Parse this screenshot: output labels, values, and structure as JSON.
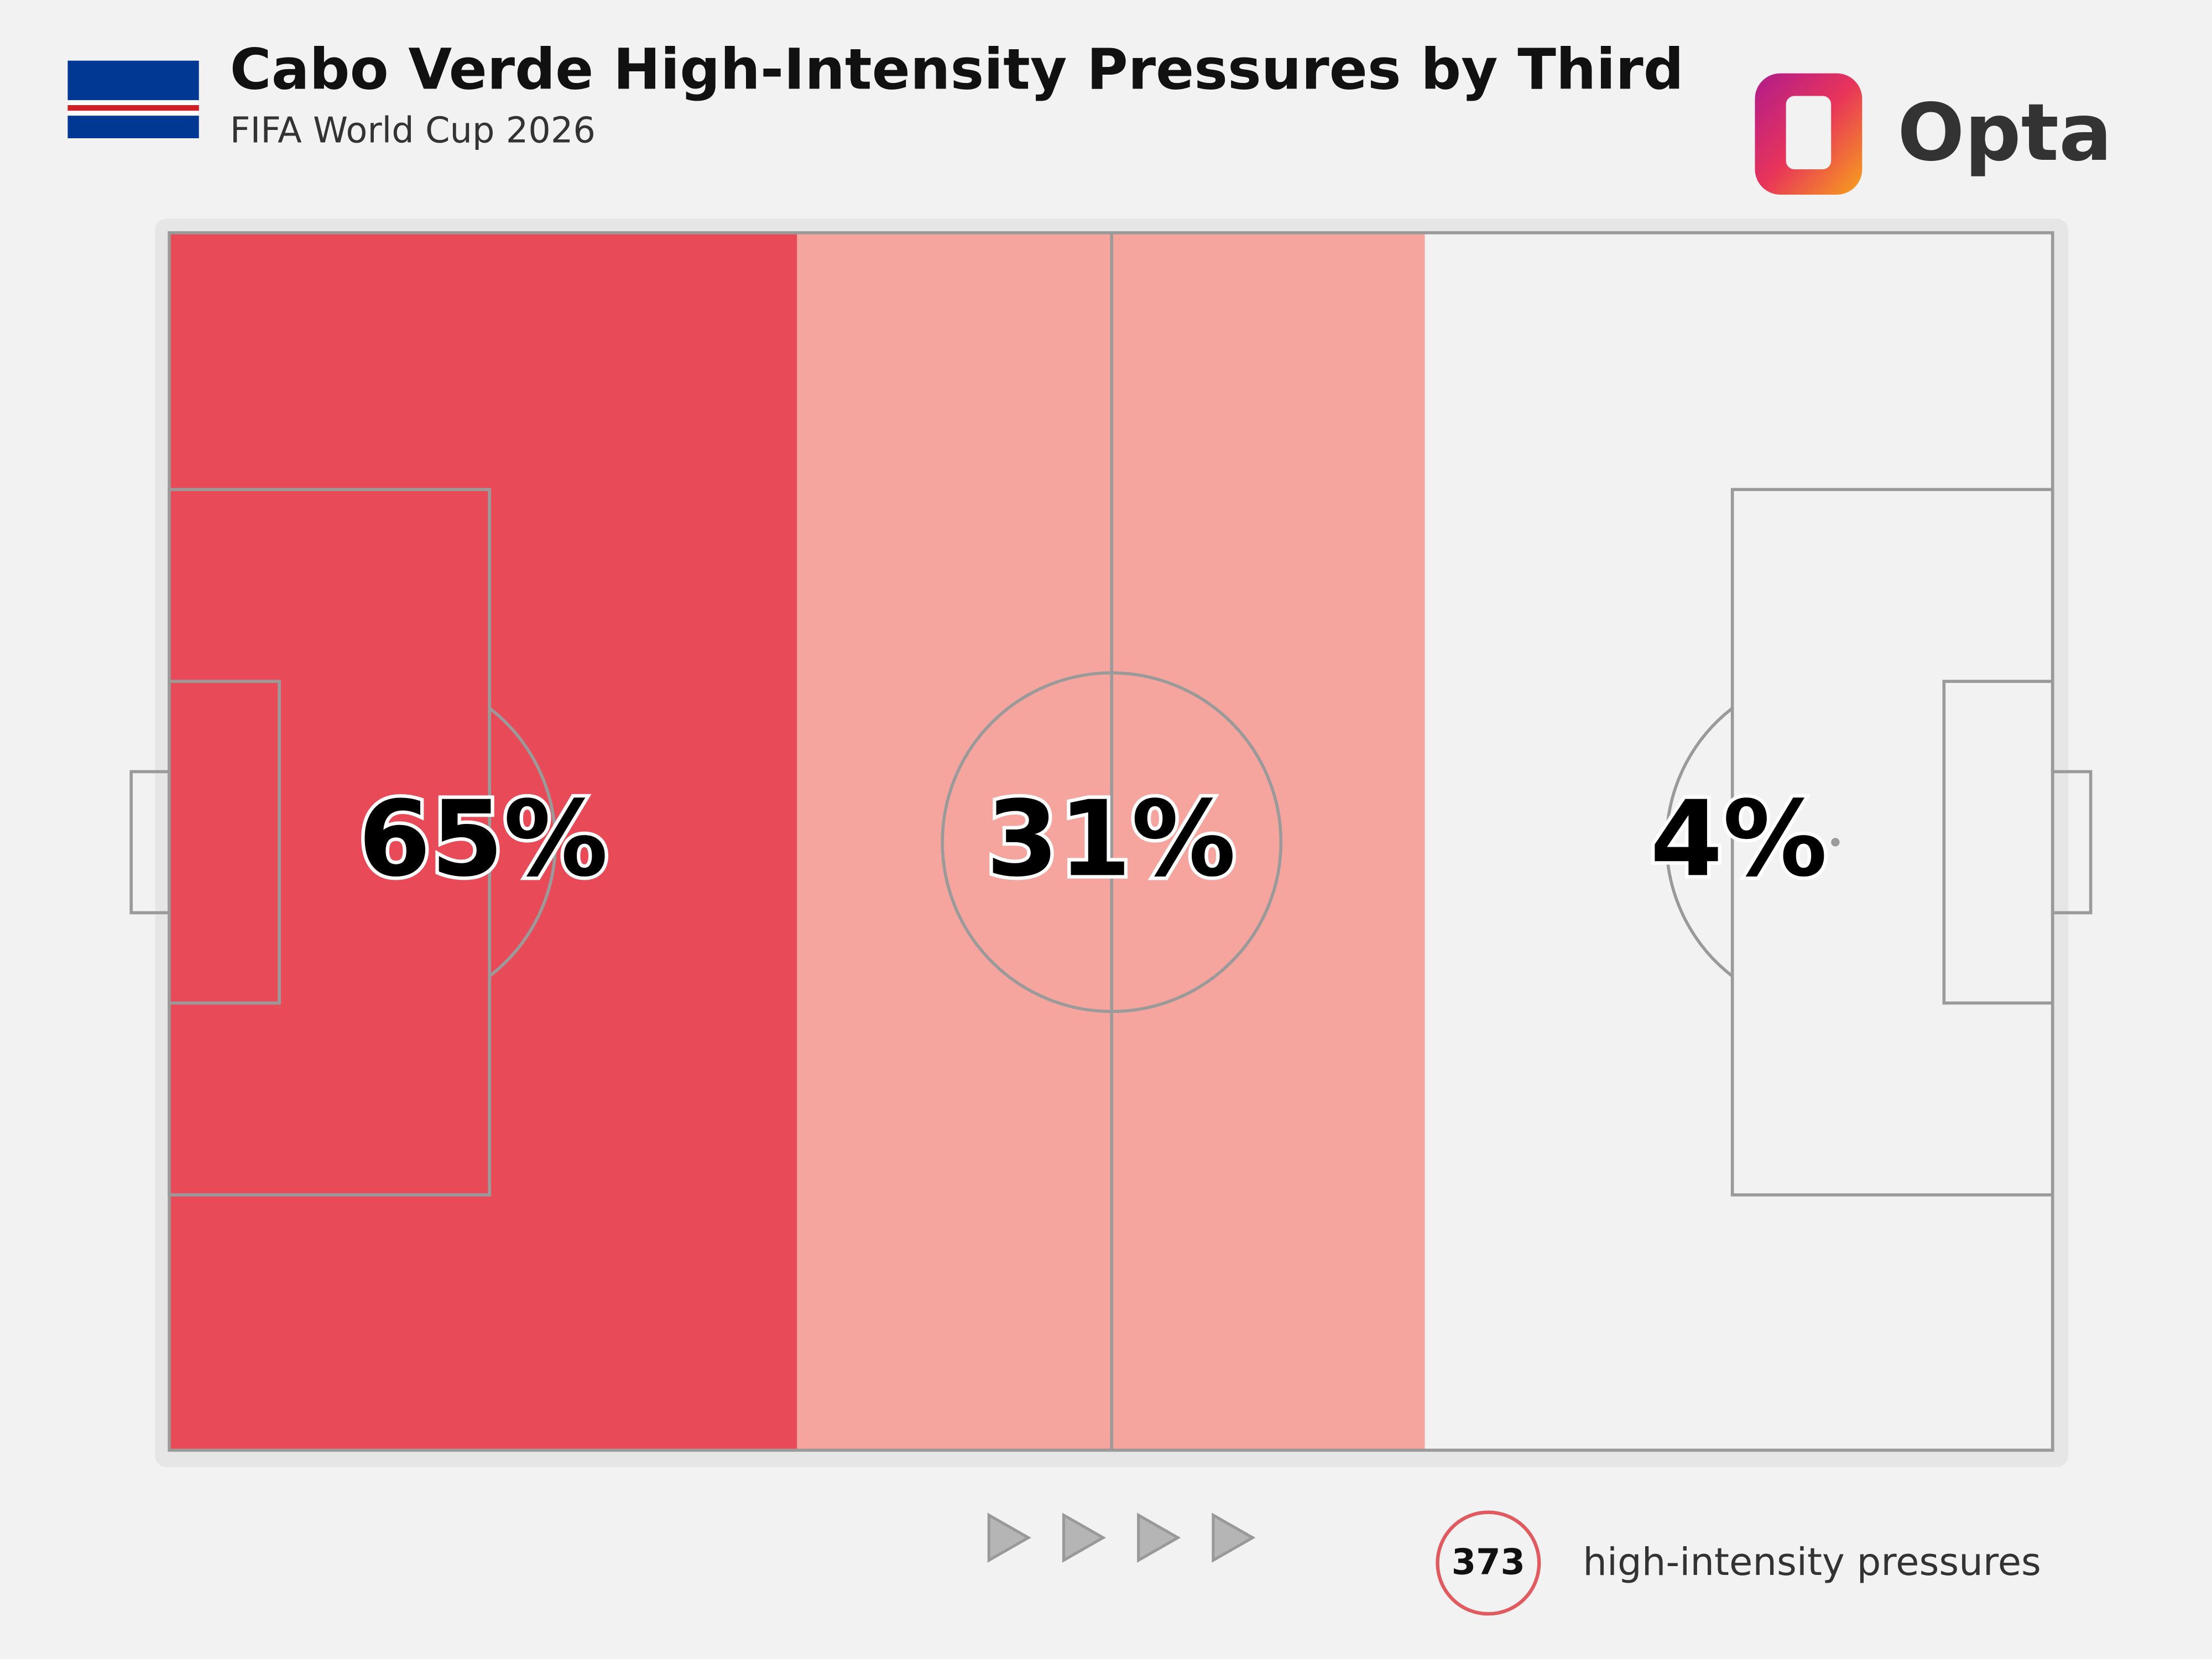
{
  "chart_data": {
    "type": "pitch-thirds",
    "title": "Cabo Verde High-Intensity Pressures by Third",
    "subtitle": "FIFA World Cup 2026",
    "values": [
      65,
      31,
      4
    ],
    "value_labels": [
      "65%",
      "31%",
      "4%"
    ],
    "colors": [
      "#e84a57",
      "#f6a59e",
      "#f2f2f2"
    ],
    "total": 373,
    "total_label": "high-intensity pressures",
    "logo": "Opta"
  }
}
